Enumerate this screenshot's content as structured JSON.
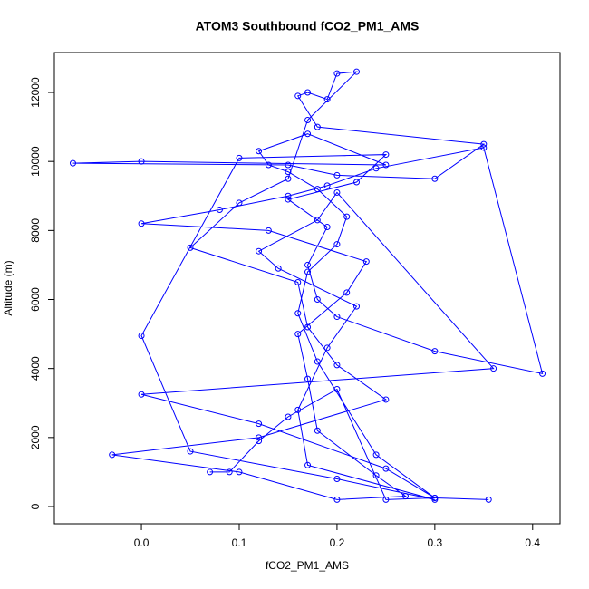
{
  "chart_data": {
    "type": "line",
    "title": "ATOM3 Southbound fCO2_PM1_AMS",
    "x_label": "fCO2_PM1_AMS",
    "y_label": "Altitude (m)",
    "color": "#0000ff",
    "x": [
      0.07,
      0.09,
      0.12,
      0.15,
      0.2,
      0.25,
      0.3,
      0.24,
      0.18,
      0.16,
      0.17,
      0.2,
      0.21,
      0.18,
      0.15,
      0.13,
      0.12,
      0.17,
      0.25,
      0.0,
      -0.07,
      0.15,
      0.2,
      0.3,
      0.35,
      0.18,
      0.16,
      0.17,
      0.19,
      0.2,
      0.22,
      0.17,
      0.15,
      0.1,
      0.05,
      0.16,
      0.17,
      0.2,
      0.25,
      0.12,
      -0.03,
      0.1,
      0.2,
      0.27,
      0.24,
      0.18,
      0.17,
      0.16,
      0.21,
      0.23,
      0.13,
      0.0,
      0.08,
      0.15,
      0.19,
      0.24,
      0.35,
      0.41,
      0.3,
      0.2,
      0.18,
      0.17,
      0.19,
      0.15,
      0.22,
      0.25,
      0.1,
      0.0,
      0.05,
      0.2,
      0.3,
      0.17,
      0.16,
      0.19,
      0.22,
      0.14,
      0.12,
      0.18,
      0.2,
      0.36,
      0.0,
      0.12,
      0.25,
      0.3,
      0.355
    ],
    "values": [
      1000,
      1000,
      1900,
      2600,
      3400,
      200,
      250,
      1500,
      4200,
      5600,
      6800,
      7600,
      8400,
      9200,
      9700,
      9900,
      10300,
      10800,
      9900,
      10000,
      9950,
      9900,
      9600,
      9500,
      10500,
      11000,
      11900,
      12000,
      11800,
      12550,
      12600,
      11200,
      9500,
      8800,
      7500,
      6500,
      5200,
      4100,
      3100,
      2000,
      1500,
      1000,
      200,
      300,
      900,
      2200,
      3700,
      5000,
      6200,
      7100,
      8000,
      8200,
      8600,
      9000,
      9300,
      9800,
      10400,
      3850,
      4500,
      5500,
      6000,
      7000,
      8100,
      8900,
      9400,
      10200,
      10100,
      4950,
      1600,
      800,
      200,
      1200,
      2800,
      4600,
      5800,
      6900,
      7400,
      8300,
      9100,
      4000,
      3250,
      2400,
      1100,
      250,
      200
    ],
    "xlim": [
      -0.089,
      0.428
    ],
    "ylim": [
      -499,
      13156
    ],
    "xticks": [
      {
        "value": 0,
        "label": "0.0"
      },
      0.1,
      0.2,
      0.3,
      0.4
    ],
    "yticks": [
      0,
      2000,
      4000,
      6000,
      8000,
      10000,
      12000
    ]
  }
}
